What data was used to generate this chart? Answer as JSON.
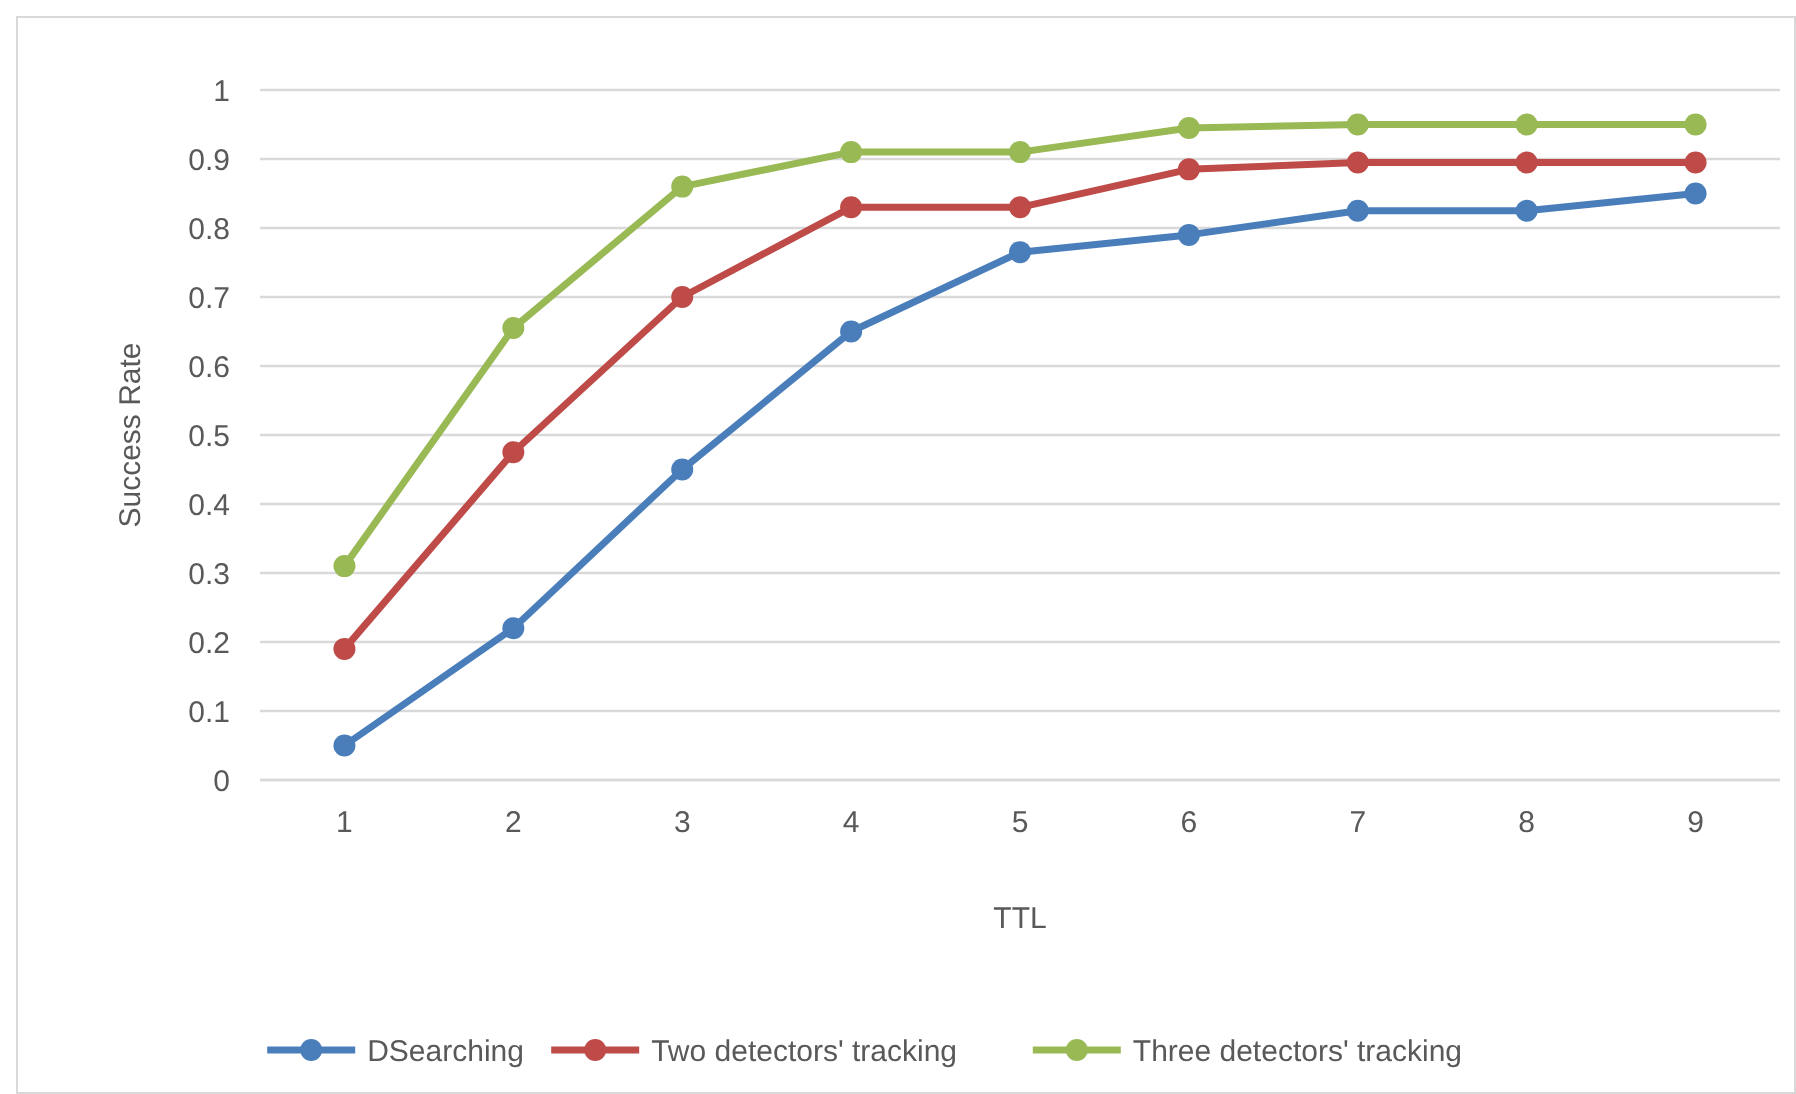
{
  "chart_data": {
    "type": "line",
    "xlabel": "TTL",
    "ylabel": "Success Rate",
    "categories": [
      "1",
      "2",
      "3",
      "4",
      "5",
      "6",
      "7",
      "8",
      "9"
    ],
    "series": [
      {
        "name": "DSearching",
        "color": "#4a7ebb",
        "values": [
          0.05,
          0.22,
          0.45,
          0.65,
          0.765,
          0.79,
          0.825,
          0.825,
          0.85
        ]
      },
      {
        "name": "Two detectors' tracking",
        "color": "#be4b48",
        "values": [
          0.19,
          0.475,
          0.7,
          0.83,
          0.83,
          0.885,
          0.895,
          0.895,
          0.895
        ]
      },
      {
        "name": "Three detectors' tracking",
        "color": "#98b954",
        "values": [
          0.31,
          0.655,
          0.86,
          0.91,
          0.91,
          0.945,
          0.95,
          0.95,
          0.95
        ]
      }
    ],
    "ylim": [
      0,
      1
    ],
    "yticks": [
      0,
      0.1,
      0.2,
      0.3,
      0.4,
      0.5,
      0.6,
      0.7,
      0.8,
      0.9,
      1
    ],
    "grid": "y",
    "legend": "bottom",
    "marker": "circle",
    "line_style": "solid"
  }
}
